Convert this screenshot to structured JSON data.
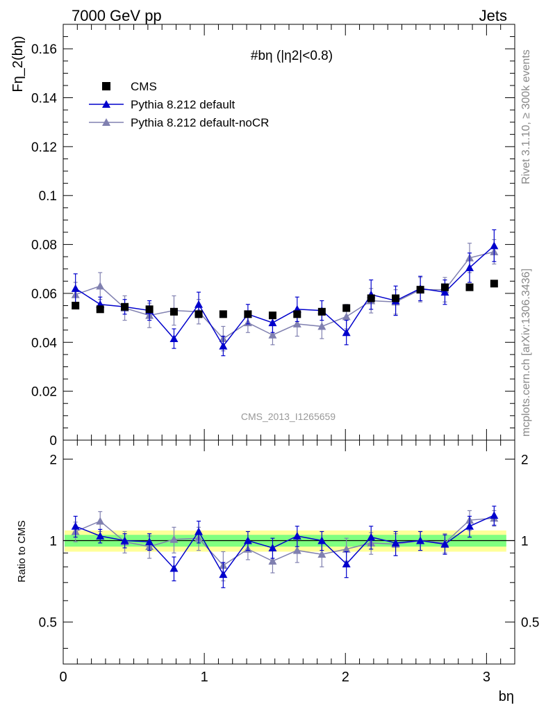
{
  "header": {
    "left": "7000 GeV pp",
    "right": "Jets"
  },
  "side_labels": {
    "rivet": "Rivet 3.1.10, ≥ 300k events",
    "mcplots": "mcplots.cern.ch [arXiv:1306.3436]"
  },
  "watermark": "CMS_2013_I1265659",
  "colors": {
    "cms": "#000000",
    "default": "#0000cc",
    "noCR": "#8080b0",
    "band_inner": "#80ff80",
    "band_outer": "#ffff99"
  },
  "chart_data": [
    {
      "type": "scatter",
      "title": "#bη (|η2|<0.8)",
      "ylabel": "Fη_2(bη)",
      "ylim": [
        0,
        0.17
      ],
      "xlim": [
        0,
        3.2
      ],
      "yticks": [
        "0",
        "0.02",
        "0.04",
        "0.06",
        "0.08",
        "0.1",
        "0.12",
        "0.14",
        "0.16"
      ],
      "grid": false,
      "legend_position": "top-left",
      "x": [
        0.087,
        0.262,
        0.436,
        0.611,
        0.785,
        0.96,
        1.134,
        1.309,
        1.484,
        1.658,
        1.833,
        2.007,
        2.182,
        2.356,
        2.531,
        2.705,
        2.88,
        3.054
      ],
      "series": [
        {
          "name": "CMS",
          "marker": "square",
          "values": [
            0.055,
            0.0535,
            0.0545,
            0.0535,
            0.0525,
            0.0515,
            0.0515,
            0.0515,
            0.051,
            0.0515,
            0.0525,
            0.054,
            0.058,
            0.058,
            0.0615,
            0.0625,
            0.0625,
            0.064
          ]
        },
        {
          "name": "Pythia 8.212 default",
          "marker": "triangle",
          "values": [
            0.062,
            0.0555,
            0.0545,
            0.053,
            0.0415,
            0.0555,
            0.0385,
            0.0515,
            0.048,
            0.0535,
            0.053,
            0.044,
            0.0595,
            0.057,
            0.062,
            0.0605,
            0.0705,
            0.0795
          ],
          "errors": [
            0.006,
            0.003,
            0.003,
            0.004,
            0.004,
            0.005,
            0.004,
            0.004,
            0.004,
            0.005,
            0.004,
            0.005,
            0.006,
            0.006,
            0.005,
            0.005,
            0.006,
            0.0065
          ]
        },
        {
          "name": "Pythia 8.212 default-noCR",
          "marker": "triangle",
          "values": [
            0.0595,
            0.063,
            0.054,
            0.051,
            0.053,
            0.0525,
            0.0415,
            0.048,
            0.043,
            0.0475,
            0.0465,
            0.0505,
            0.057,
            0.0565,
            0.0615,
            0.0615,
            0.0745,
            0.077
          ],
          "errors": [
            0.005,
            0.0055,
            0.005,
            0.005,
            0.006,
            0.005,
            0.005,
            0.004,
            0.004,
            0.005,
            0.005,
            0.005,
            0.005,
            0.005,
            0.005,
            0.005,
            0.006,
            0.005
          ]
        }
      ]
    },
    {
      "type": "scatter",
      "xlabel": "bη",
      "ylabel": "Ratio to CMS",
      "ylim": [
        0.35,
        2.35
      ],
      "log_y": true,
      "xlim": [
        0,
        3.2
      ],
      "xticks": [
        "0",
        "1",
        "2",
        "3"
      ],
      "yticks": [
        "0.5",
        "1",
        "2"
      ],
      "x": [
        0.087,
        0.262,
        0.436,
        0.611,
        0.785,
        0.96,
        1.134,
        1.309,
        1.484,
        1.658,
        1.833,
        2.007,
        2.182,
        2.356,
        2.531,
        2.705,
        2.88,
        3.054
      ],
      "band_inner": 0.05,
      "band_outer": 0.09,
      "series": [
        {
          "name": "Pythia 8.212 default",
          "values": [
            1.13,
            1.04,
            1.0,
            0.99,
            0.79,
            1.08,
            0.75,
            1.0,
            0.94,
            1.04,
            1.0,
            0.82,
            1.03,
            0.98,
            1.0,
            0.97,
            1.13,
            1.24
          ],
          "errors": [
            0.1,
            0.06,
            0.06,
            0.07,
            0.08,
            0.1,
            0.08,
            0.08,
            0.08,
            0.09,
            0.08,
            0.09,
            0.1,
            0.1,
            0.08,
            0.08,
            0.1,
            0.1
          ]
        },
        {
          "name": "Pythia 8.212 default-noCR",
          "values": [
            1.08,
            1.18,
            0.99,
            0.95,
            1.01,
            1.02,
            0.81,
            0.93,
            0.84,
            0.92,
            0.89,
            0.93,
            0.98,
            0.97,
            1.0,
            0.98,
            1.19,
            1.21
          ],
          "errors": [
            0.09,
            0.1,
            0.09,
            0.09,
            0.11,
            0.1,
            0.1,
            0.08,
            0.08,
            0.09,
            0.09,
            0.09,
            0.09,
            0.09,
            0.08,
            0.08,
            0.1,
            0.08
          ]
        }
      ]
    }
  ]
}
